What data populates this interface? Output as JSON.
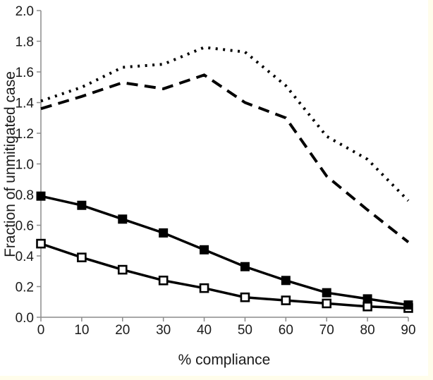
{
  "page": {
    "background_color": "#ffffff",
    "edge_color": "#fffdeb"
  },
  "chart_data": {
    "type": "line",
    "title": "",
    "xlabel": "% compliance",
    "ylabel": "Fraction of unmitigated case",
    "x": [
      0,
      10,
      20,
      30,
      40,
      50,
      60,
      70,
      80,
      90
    ],
    "x_tick_labels": [
      "0",
      "10",
      "20",
      "30",
      "40",
      "50",
      "60",
      "70",
      "80",
      "90"
    ],
    "y_tick_labels": [
      "0.0",
      "0.2",
      "0.4",
      "0.6",
      "0.8",
      "1.0",
      "1.2",
      "1.4",
      "1.6",
      "1.8",
      "2.0"
    ],
    "y_tick_values": [
      0.0,
      0.2,
      0.4,
      0.6,
      0.8,
      1.0,
      1.2,
      1.4,
      1.6,
      1.8,
      2.0
    ],
    "xlim": [
      0,
      90
    ],
    "ylim": [
      0,
      2.0
    ],
    "grid": false,
    "legend": "none",
    "axis_color": "#8c8c8c",
    "line_color": "#000000",
    "series": [
      {
        "name": "dotted-line",
        "style": "dotted",
        "marker": "none",
        "values": [
          1.41,
          1.5,
          1.63,
          1.65,
          1.76,
          1.73,
          1.51,
          1.18,
          1.03,
          0.76
        ]
      },
      {
        "name": "dashed-line",
        "style": "dashed",
        "marker": "none",
        "values": [
          1.36,
          1.44,
          1.53,
          1.49,
          1.58,
          1.4,
          1.3,
          0.92,
          0.7,
          0.49
        ]
      },
      {
        "name": "open-squares",
        "style": "solid",
        "marker": "open-square",
        "values": [
          0.48,
          0.39,
          0.31,
          0.24,
          0.19,
          0.13,
          0.11,
          0.09,
          0.07,
          0.06
        ]
      },
      {
        "name": "filled-squares",
        "style": "solid",
        "marker": "filled-square",
        "values": [
          0.79,
          0.73,
          0.64,
          0.55,
          0.44,
          0.33,
          0.24,
          0.16,
          0.12,
          0.08
        ]
      }
    ]
  }
}
